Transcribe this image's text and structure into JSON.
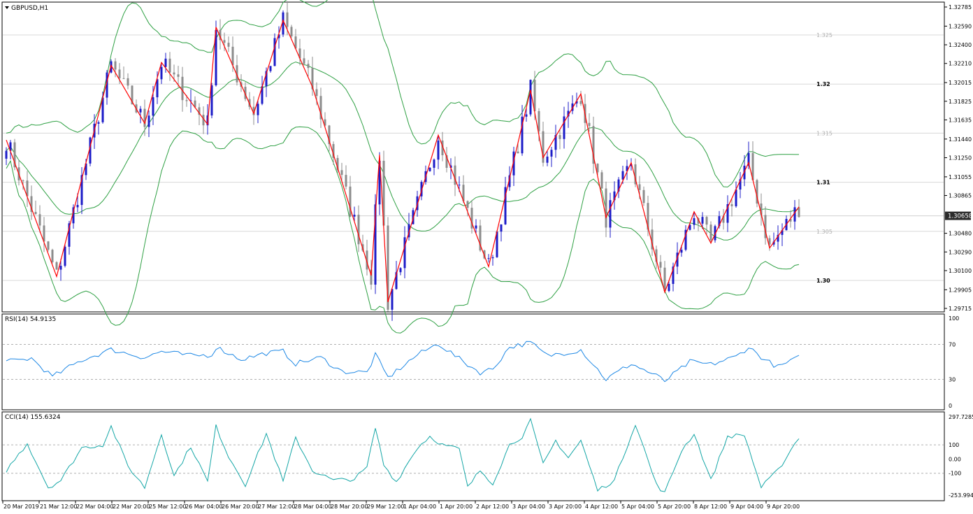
{
  "window": {
    "symbol_label": "GBPUSD,H1",
    "dropdown_icon": "triangle-down-icon"
  },
  "colors": {
    "bull_candle": "#1c1cc8",
    "bear_candle": "#8c8c8c",
    "zigzag": "#ff0000",
    "bollinger": "#2ea043",
    "rsi_line": "#1e88e5",
    "cci_line": "#14a6a6",
    "grid": "#c8c8c8",
    "price_badge_bg": "#2b2b2b",
    "price_badge_text": "#ffffff"
  },
  "price_axis": {
    "ticks": [
      "1.32785",
      "1.32590",
      "1.32400",
      "1.32210",
      "1.32015",
      "1.31825",
      "1.31635",
      "1.31440",
      "1.31250",
      "1.31055",
      "1.30865",
      "1.30480",
      "1.30290",
      "1.30100",
      "1.29905",
      "1.29715"
    ],
    "current_price": "1.30658",
    "range": [
      1.29715,
      1.32785
    ]
  },
  "level_labels": [
    {
      "price": 1.325,
      "text": "1.325",
      "strong": false
    },
    {
      "price": 1.32,
      "text": "1.32",
      "strong": true
    },
    {
      "price": 1.315,
      "text": "1.315",
      "strong": false
    },
    {
      "price": 1.31,
      "text": "1.31",
      "strong": true
    },
    {
      "price": 1.305,
      "text": "1.305",
      "strong": false
    },
    {
      "price": 1.3,
      "text": "1.30",
      "strong": true
    }
  ],
  "rsi": {
    "label": "RSI(14) 54.9135",
    "axis_ticks": [
      "100",
      "70",
      "30",
      "0"
    ],
    "levels": [
      70,
      30
    ]
  },
  "cci": {
    "label": "CCI(14) 155.6324",
    "axis_ticks": [
      "297.7285",
      "100",
      "0.00",
      "-100",
      "-253.9942"
    ],
    "range": [
      -253.9942,
      297.7285
    ],
    "levels": [
      100,
      -100
    ]
  },
  "time_axis": [
    "20 Mar 2019",
    "21 Mar 12:00",
    "22 Mar 04:00",
    "22 Mar 20:00",
    "25 Mar 12:00",
    "26 Mar 04:00",
    "26 Mar 20:00",
    "27 Mar 12:00",
    "28 Mar 04:00",
    "28 Mar 20:00",
    "29 Mar 12:00",
    "1 Apr 04:00",
    "1 Apr 20:00",
    "2 Apr 12:00",
    "3 Apr 04:00",
    "3 Apr 20:00",
    "4 Apr 12:00",
    "5 Apr 04:00",
    "5 Apr 20:00",
    "8 Apr 12:00",
    "9 Apr 04:00",
    "9 Apr 20:00"
  ],
  "zigzag_points": [
    {
      "t": 0,
      "p": 1.3143
    },
    {
      "t": 12,
      "p": 1.3004
    },
    {
      "t": 25,
      "p": 1.3219
    },
    {
      "t": 33,
      "p": 1.316
    },
    {
      "t": 37,
      "p": 1.3222
    },
    {
      "t": 48,
      "p": 1.3159
    },
    {
      "t": 50,
      "p": 1.3258
    },
    {
      "t": 59,
      "p": 1.317
    },
    {
      "t": 66,
      "p": 1.3265
    },
    {
      "t": 73,
      "p": 1.3197
    },
    {
      "t": 87,
      "p": 1.3005
    },
    {
      "t": 89,
      "p": 1.3128
    },
    {
      "t": 91,
      "p": 1.2978
    },
    {
      "t": 103,
      "p": 1.3148
    },
    {
      "t": 115,
      "p": 1.3014
    },
    {
      "t": 125,
      "p": 1.3194
    },
    {
      "t": 128,
      "p": 1.3125
    },
    {
      "t": 137,
      "p": 1.319
    },
    {
      "t": 143,
      "p": 1.3064
    },
    {
      "t": 149,
      "p": 1.312
    },
    {
      "t": 157,
      "p": 1.2988
    },
    {
      "t": 164,
      "p": 1.307
    },
    {
      "t": 168,
      "p": 1.3038
    },
    {
      "t": 177,
      "p": 1.312
    },
    {
      "t": 182,
      "p": 1.3033
    },
    {
      "t": 189,
      "p": 1.3075
    }
  ],
  "cci_shape": [
    {
      "t": 0,
      "v": -80
    },
    {
      "t": 5,
      "v": 110
    },
    {
      "t": 10,
      "v": -200
    },
    {
      "t": 13,
      "v": -150
    },
    {
      "t": 18,
      "v": 80
    },
    {
      "t": 23,
      "v": 100
    },
    {
      "t": 25,
      "v": 230
    },
    {
      "t": 29,
      "v": -50
    },
    {
      "t": 33,
      "v": -200
    },
    {
      "t": 37,
      "v": 180
    },
    {
      "t": 40,
      "v": -120
    },
    {
      "t": 44,
      "v": 90
    },
    {
      "t": 48,
      "v": -160
    },
    {
      "t": 50,
      "v": 230
    },
    {
      "t": 53,
      "v": 20
    },
    {
      "t": 57,
      "v": -180
    },
    {
      "t": 62,
      "v": 180
    },
    {
      "t": 66,
      "v": -160
    },
    {
      "t": 69,
      "v": 150
    },
    {
      "t": 73,
      "v": -80
    },
    {
      "t": 78,
      "v": -150
    },
    {
      "t": 83,
      "v": -140
    },
    {
      "t": 86,
      "v": -60
    },
    {
      "t": 88,
      "v": 220
    },
    {
      "t": 90,
      "v": -40
    },
    {
      "t": 93,
      "v": -160
    },
    {
      "t": 98,
      "v": 80
    },
    {
      "t": 101,
      "v": 160
    },
    {
      "t": 104,
      "v": 100
    },
    {
      "t": 108,
      "v": 70
    },
    {
      "t": 110,
      "v": -200
    },
    {
      "t": 113,
      "v": -80
    },
    {
      "t": 116,
      "v": -170
    },
    {
      "t": 120,
      "v": 100
    },
    {
      "t": 123,
      "v": 160
    },
    {
      "t": 125,
      "v": 270
    },
    {
      "t": 128,
      "v": -40
    },
    {
      "t": 131,
      "v": 130
    },
    {
      "t": 134,
      "v": 10
    },
    {
      "t": 137,
      "v": 130
    },
    {
      "t": 141,
      "v": -220
    },
    {
      "t": 145,
      "v": -150
    },
    {
      "t": 150,
      "v": 250
    },
    {
      "t": 155,
      "v": -180
    },
    {
      "t": 157,
      "v": -240
    },
    {
      "t": 161,
      "v": 60
    },
    {
      "t": 164,
      "v": 180
    },
    {
      "t": 168,
      "v": -150
    },
    {
      "t": 172,
      "v": 160
    },
    {
      "t": 176,
      "v": 170
    },
    {
      "t": 180,
      "v": -200
    },
    {
      "t": 184,
      "v": -80
    },
    {
      "t": 189,
      "v": 155
    }
  ],
  "rsi_shape": [
    {
      "t": 0,
      "v": 50
    },
    {
      "t": 6,
      "v": 54
    },
    {
      "t": 11,
      "v": 33
    },
    {
      "t": 18,
      "v": 52
    },
    {
      "t": 25,
      "v": 64
    },
    {
      "t": 33,
      "v": 55
    },
    {
      "t": 37,
      "v": 62
    },
    {
      "t": 44,
      "v": 57
    },
    {
      "t": 49,
      "v": 58
    },
    {
      "t": 50,
      "v": 67
    },
    {
      "t": 56,
      "v": 53
    },
    {
      "t": 62,
      "v": 60
    },
    {
      "t": 66,
      "v": 62
    },
    {
      "t": 69,
      "v": 48
    },
    {
      "t": 75,
      "v": 55
    },
    {
      "t": 80,
      "v": 39
    },
    {
      "t": 86,
      "v": 38
    },
    {
      "t": 88,
      "v": 58
    },
    {
      "t": 91,
      "v": 32
    },
    {
      "t": 98,
      "v": 58
    },
    {
      "t": 103,
      "v": 71
    },
    {
      "t": 109,
      "v": 50
    },
    {
      "t": 113,
      "v": 38
    },
    {
      "t": 116,
      "v": 42
    },
    {
      "t": 120,
      "v": 67
    },
    {
      "t": 125,
      "v": 72
    },
    {
      "t": 129,
      "v": 57
    },
    {
      "t": 135,
      "v": 62
    },
    {
      "t": 137,
      "v": 64
    },
    {
      "t": 143,
      "v": 30
    },
    {
      "t": 149,
      "v": 48
    },
    {
      "t": 155,
      "v": 34
    },
    {
      "t": 157,
      "v": 28
    },
    {
      "t": 163,
      "v": 50
    },
    {
      "t": 168,
      "v": 47
    },
    {
      "t": 174,
      "v": 56
    },
    {
      "t": 177,
      "v": 67
    },
    {
      "t": 181,
      "v": 52
    },
    {
      "t": 184,
      "v": 44
    },
    {
      "t": 189,
      "v": 55
    }
  ],
  "chart_data": {
    "type": "candlestick",
    "symbol": "GBPUSD",
    "timeframe": "H1",
    "ylim": [
      1.29715,
      1.32785
    ],
    "current_price": 1.30658,
    "indicators": [
      "Bollinger Bands",
      "ZigZag",
      "RSI(14)",
      "CCI(14)"
    ],
    "rsi_value": 54.9135,
    "cci_value": 155.6324
  }
}
